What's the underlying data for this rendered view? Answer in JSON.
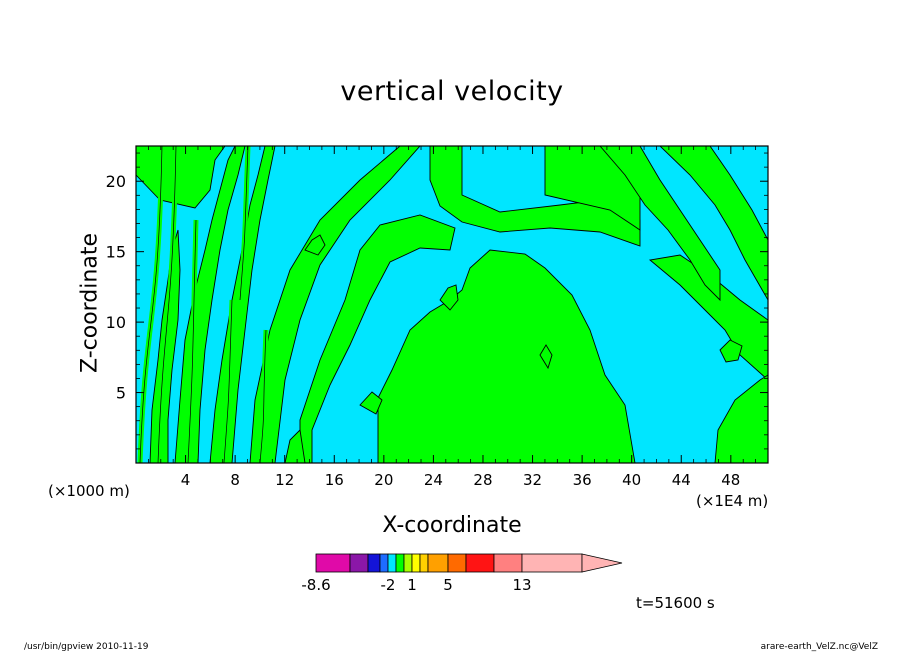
{
  "chart_data": {
    "type": "heatmap",
    "title": "vertical velocity",
    "xlabel": "X-coordinate",
    "ylabel": "Z-coordinate",
    "x_unit": "(×1000 m)",
    "x_multiplier": "(×1E4 m)",
    "xlim": [
      0,
      51
    ],
    "ylim": [
      0,
      22.5
    ],
    "x_ticks": [
      4,
      8,
      12,
      16,
      20,
      24,
      28,
      32,
      36,
      40,
      44,
      48
    ],
    "y_ticks": [
      5,
      10,
      15,
      20
    ],
    "colorbar": {
      "tick_labels": [
        {
          "label": "-8.6",
          "value": -8.6
        },
        {
          "label": "-2",
          "value": -2
        },
        {
          "label": "1",
          "value": 1
        },
        {
          "label": "5",
          "value": 5
        },
        {
          "label": "13",
          "value": 13
        }
      ],
      "levels": [
        -8.6,
        -6,
        -4,
        -3,
        -2,
        -1,
        0,
        1,
        2,
        3,
        5,
        7,
        10,
        13,
        20
      ],
      "colors": [
        "#e00aa8",
        "#8b17a8",
        "#1414d8",
        "#1e6cff",
        "#00e6ff",
        "#00ff00",
        "#a8ff00",
        "#ffff00",
        "#ffd000",
        "#ffa000",
        "#ff6a00",
        "#ff1414",
        "#ff8080",
        "#ffb4b4"
      ],
      "extend": "max"
    },
    "field_colors": {
      "negative": "#00e6ff",
      "positive": "#00ff00",
      "contour": "#000000"
    },
    "annotation": "t=51600 s"
  },
  "footer": {
    "left": "/usr/bin/gpview   2010-11-19",
    "right": "arare-earth_VelZ.nc@VelZ"
  }
}
